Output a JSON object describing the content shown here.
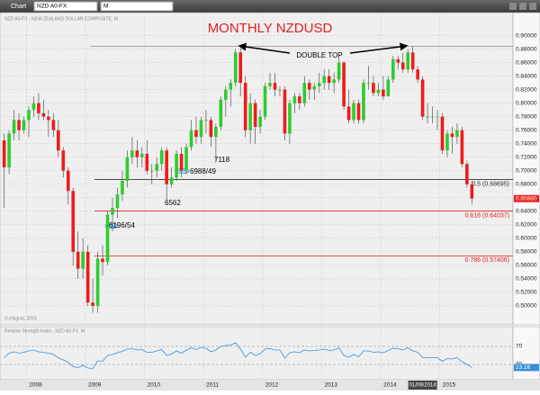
{
  "toolbar": {
    "tab": "Chart",
    "symbol": "NZD A0-FX",
    "interval": "M"
  },
  "chart_data": {
    "type": "candlestick",
    "title": "MONTHLY NZDUSD",
    "subtitle": "NZD A0-FX - NEW ZEALAND DOLLAR COMPOSITE, M",
    "categories": [
      null,
      null,
      null,
      null,
      null,
      "2008",
      null,
      null,
      null,
      null,
      null,
      null,
      null,
      null,
      null,
      null,
      null,
      "2009",
      null,
      null,
      null,
      null,
      null,
      null,
      null,
      null,
      null,
      null,
      null,
      "2010",
      null,
      null,
      null,
      null,
      null,
      null,
      null,
      null,
      null,
      null,
      null,
      "2011",
      null,
      null,
      null,
      null,
      null,
      null,
      null,
      null,
      null,
      null,
      null,
      "2012",
      null,
      null,
      null,
      null,
      null,
      null,
      null,
      null,
      null,
      null,
      null,
      "2013",
      null,
      null,
      null,
      null,
      null,
      null,
      null,
      null,
      null,
      null,
      null,
      "2014",
      null,
      null,
      null,
      null,
      null,
      null,
      null,
      null,
      null,
      null,
      null,
      "2015",
      null,
      null,
      null,
      null,
      null,
      null
    ],
    "open": [
      0.745,
      0.705,
      0.755,
      0.775,
      0.76,
      0.775,
      0.79,
      0.8,
      0.785,
      0.78,
      0.775,
      0.76,
      0.73,
      0.7,
      0.67,
      0.58,
      0.555,
      0.58,
      0.505,
      0.5,
      0.57,
      0.565,
      0.635,
      0.645,
      0.665,
      0.685,
      0.72,
      0.73,
      0.72,
      0.725,
      0.7,
      0.7,
      0.71,
      0.73,
      0.68,
      0.69,
      0.725,
      0.7,
      0.735,
      0.76,
      0.75,
      0.775,
      0.775,
      0.75,
      0.765,
      0.805,
      0.82,
      0.83,
      0.875,
      0.83,
      0.76,
      0.8,
      0.765,
      0.78,
      0.825,
      0.83,
      0.82,
      0.82,
      0.755,
      0.8,
      0.81,
      0.8,
      0.83,
      0.82,
      0.825,
      0.83,
      0.84,
      0.83,
      0.835,
      0.86,
      0.795,
      0.775,
      0.8,
      0.775,
      0.83,
      0.83,
      0.815,
      0.82,
      0.81,
      0.835,
      0.865,
      0.86,
      0.85,
      0.875,
      0.85,
      0.835,
      0.78,
      0.78,
      0.78,
      0.78,
      0.73,
      0.755,
      0.75,
      0.76,
      0.71,
      0.68
    ],
    "high": [
      0.755,
      0.76,
      0.79,
      0.785,
      0.78,
      0.795,
      0.81,
      0.815,
      0.805,
      0.79,
      0.785,
      0.775,
      0.735,
      0.705,
      0.675,
      0.61,
      0.6,
      0.59,
      0.54,
      0.58,
      0.59,
      0.64,
      0.66,
      0.675,
      0.7,
      0.73,
      0.75,
      0.745,
      0.735,
      0.745,
      0.71,
      0.72,
      0.735,
      0.735,
      0.705,
      0.73,
      0.735,
      0.74,
      0.775,
      0.78,
      0.78,
      0.79,
      0.78,
      0.77,
      0.81,
      0.825,
      0.835,
      0.88,
      0.884,
      0.84,
      0.815,
      0.805,
      0.79,
      0.83,
      0.845,
      0.845,
      0.825,
      0.825,
      0.805,
      0.815,
      0.815,
      0.84,
      0.835,
      0.83,
      0.845,
      0.85,
      0.85,
      0.845,
      0.867,
      0.862,
      0.82,
      0.805,
      0.805,
      0.835,
      0.855,
      0.84,
      0.83,
      0.84,
      0.84,
      0.87,
      0.87,
      0.875,
      0.88,
      0.884,
      0.855,
      0.84,
      0.8,
      0.795,
      0.79,
      0.785,
      0.76,
      0.765,
      0.77,
      0.765,
      0.715,
      0.685
    ],
    "low": [
      0.645,
      0.695,
      0.745,
      0.745,
      0.755,
      0.75,
      0.78,
      0.775,
      0.775,
      0.75,
      0.75,
      0.72,
      0.69,
      0.65,
      0.56,
      0.54,
      0.54,
      0.5,
      0.49,
      0.49,
      0.545,
      0.56,
      0.61,
      0.63,
      0.655,
      0.675,
      0.71,
      0.705,
      0.705,
      0.695,
      0.68,
      0.69,
      0.7,
      0.656,
      0.675,
      0.685,
      0.69,
      0.695,
      0.73,
      0.74,
      0.74,
      0.755,
      0.735,
      0.712,
      0.76,
      0.78,
      0.795,
      0.825,
      0.81,
      0.75,
      0.74,
      0.74,
      0.755,
      0.775,
      0.82,
      0.81,
      0.81,
      0.745,
      0.74,
      0.785,
      0.79,
      0.795,
      0.805,
      0.805,
      0.815,
      0.82,
      0.82,
      0.815,
      0.83,
      0.79,
      0.77,
      0.77,
      0.77,
      0.77,
      0.82,
      0.81,
      0.81,
      0.805,
      0.81,
      0.83,
      0.85,
      0.845,
      0.845,
      0.845,
      0.83,
      0.775,
      0.77,
      0.77,
      0.76,
      0.725,
      0.72,
      0.725,
      0.74,
      0.705,
      0.675,
      0.65
    ],
    "close": [
      0.705,
      0.755,
      0.775,
      0.76,
      0.775,
      0.79,
      0.8,
      0.785,
      0.78,
      0.775,
      0.76,
      0.73,
      0.7,
      0.67,
      0.58,
      0.555,
      0.58,
      0.505,
      0.5,
      0.57,
      0.565,
      0.635,
      0.645,
      0.665,
      0.685,
      0.72,
      0.73,
      0.72,
      0.725,
      0.7,
      0.7,
      0.71,
      0.73,
      0.68,
      0.69,
      0.725,
      0.7,
      0.735,
      0.76,
      0.75,
      0.775,
      0.775,
      0.75,
      0.765,
      0.805,
      0.82,
      0.83,
      0.875,
      0.83,
      0.76,
      0.8,
      0.765,
      0.78,
      0.825,
      0.83,
      0.82,
      0.82,
      0.755,
      0.8,
      0.81,
      0.8,
      0.83,
      0.82,
      0.825,
      0.83,
      0.84,
      0.83,
      0.835,
      0.86,
      0.795,
      0.775,
      0.8,
      0.775,
      0.83,
      0.83,
      0.815,
      0.82,
      0.81,
      0.835,
      0.865,
      0.86,
      0.85,
      0.875,
      0.85,
      0.835,
      0.78,
      0.78,
      0.78,
      0.78,
      0.73,
      0.755,
      0.75,
      0.76,
      0.71,
      0.68,
      0.6588
    ],
    "color_up": "#2ecc2e",
    "color_down": "#ee1c1c",
    "ylim": [
      0.48,
      0.93
    ],
    "yticks": [
      {
        "value": 0.5,
        "label": "0.50000"
      },
      {
        "value": 0.52,
        "label": "0.52000"
      },
      {
        "value": 0.54,
        "label": "0.54000"
      },
      {
        "value": 0.56,
        "label": "0.56000"
      },
      {
        "value": 0.58,
        "label": "0.58000"
      },
      {
        "value": 0.6,
        "label": "0.60000"
      },
      {
        "value": 0.62,
        "label": "0.62000"
      },
      {
        "value": 0.64,
        "label": "0.64000"
      },
      {
        "value": 0.66,
        "label": "0.66000"
      },
      {
        "value": 0.68,
        "label": "0.68000"
      },
      {
        "value": 0.7,
        "label": "0.70000"
      },
      {
        "value": 0.72,
        "label": "0.72000"
      },
      {
        "value": 0.74,
        "label": "0.74000"
      },
      {
        "value": 0.76,
        "label": "0.76000"
      },
      {
        "value": 0.78,
        "label": "0.78000"
      },
      {
        "value": 0.8,
        "label": "0.80000"
      },
      {
        "value": 0.82,
        "label": "0.82000"
      },
      {
        "value": 0.84,
        "label": "0.84000"
      },
      {
        "value": 0.86,
        "label": "0.86000"
      },
      {
        "value": 0.88,
        "label": "0.88000"
      },
      {
        "value": 0.9,
        "label": "0.90000"
      }
    ],
    "grid": true,
    "levels": [
      {
        "value": 0.68695,
        "label": "0.5 (0.68695)",
        "color": "#333333"
      },
      {
        "value": 0.64037,
        "label": "0.618 (0.64037)",
        "color": "#e02020"
      },
      {
        "value": 0.57406,
        "label": "0.786 (0.57406)",
        "color": "#e02020"
      }
    ],
    "double_top": {
      "label": "DOUBLE TOP",
      "value": 0.884
    },
    "annotations": [
      "7118",
      "6988/49",
      "6562",
      "6196/54"
    ],
    "last_price": {
      "value": 0.6588,
      "label": "0.65880"
    },
    "cursor_date": "01/09/2014",
    "copyright": "© eSignal, 2015"
  },
  "rsi": {
    "type": "line",
    "name": "Relative Strength Index - NZD A0-FX, M",
    "color": "#3a8fd8",
    "values": [
      45,
      55,
      58,
      55,
      57,
      60,
      62,
      58,
      57,
      55,
      52,
      45,
      40,
      35,
      25,
      23,
      28,
      22,
      21,
      38,
      37,
      50,
      52,
      56,
      59,
      64,
      65,
      62,
      63,
      57,
      57,
      60,
      63,
      50,
      53,
      60,
      55,
      62,
      67,
      63,
      68,
      66,
      58,
      62,
      70,
      72,
      73,
      78,
      64,
      46,
      57,
      50,
      54,
      64,
      65,
      62,
      62,
      44,
      56,
      58,
      56,
      62,
      60,
      61,
      62,
      64,
      61,
      62,
      67,
      50,
      46,
      52,
      47,
      60,
      60,
      57,
      58,
      56,
      61,
      66,
      65,
      62,
      67,
      60,
      57,
      45,
      45,
      45,
      45,
      37,
      43,
      42,
      45,
      36,
      30,
      23.16
    ],
    "ylim": [
      0,
      100
    ],
    "yticks": [
      30,
      70
    ]
  }
}
